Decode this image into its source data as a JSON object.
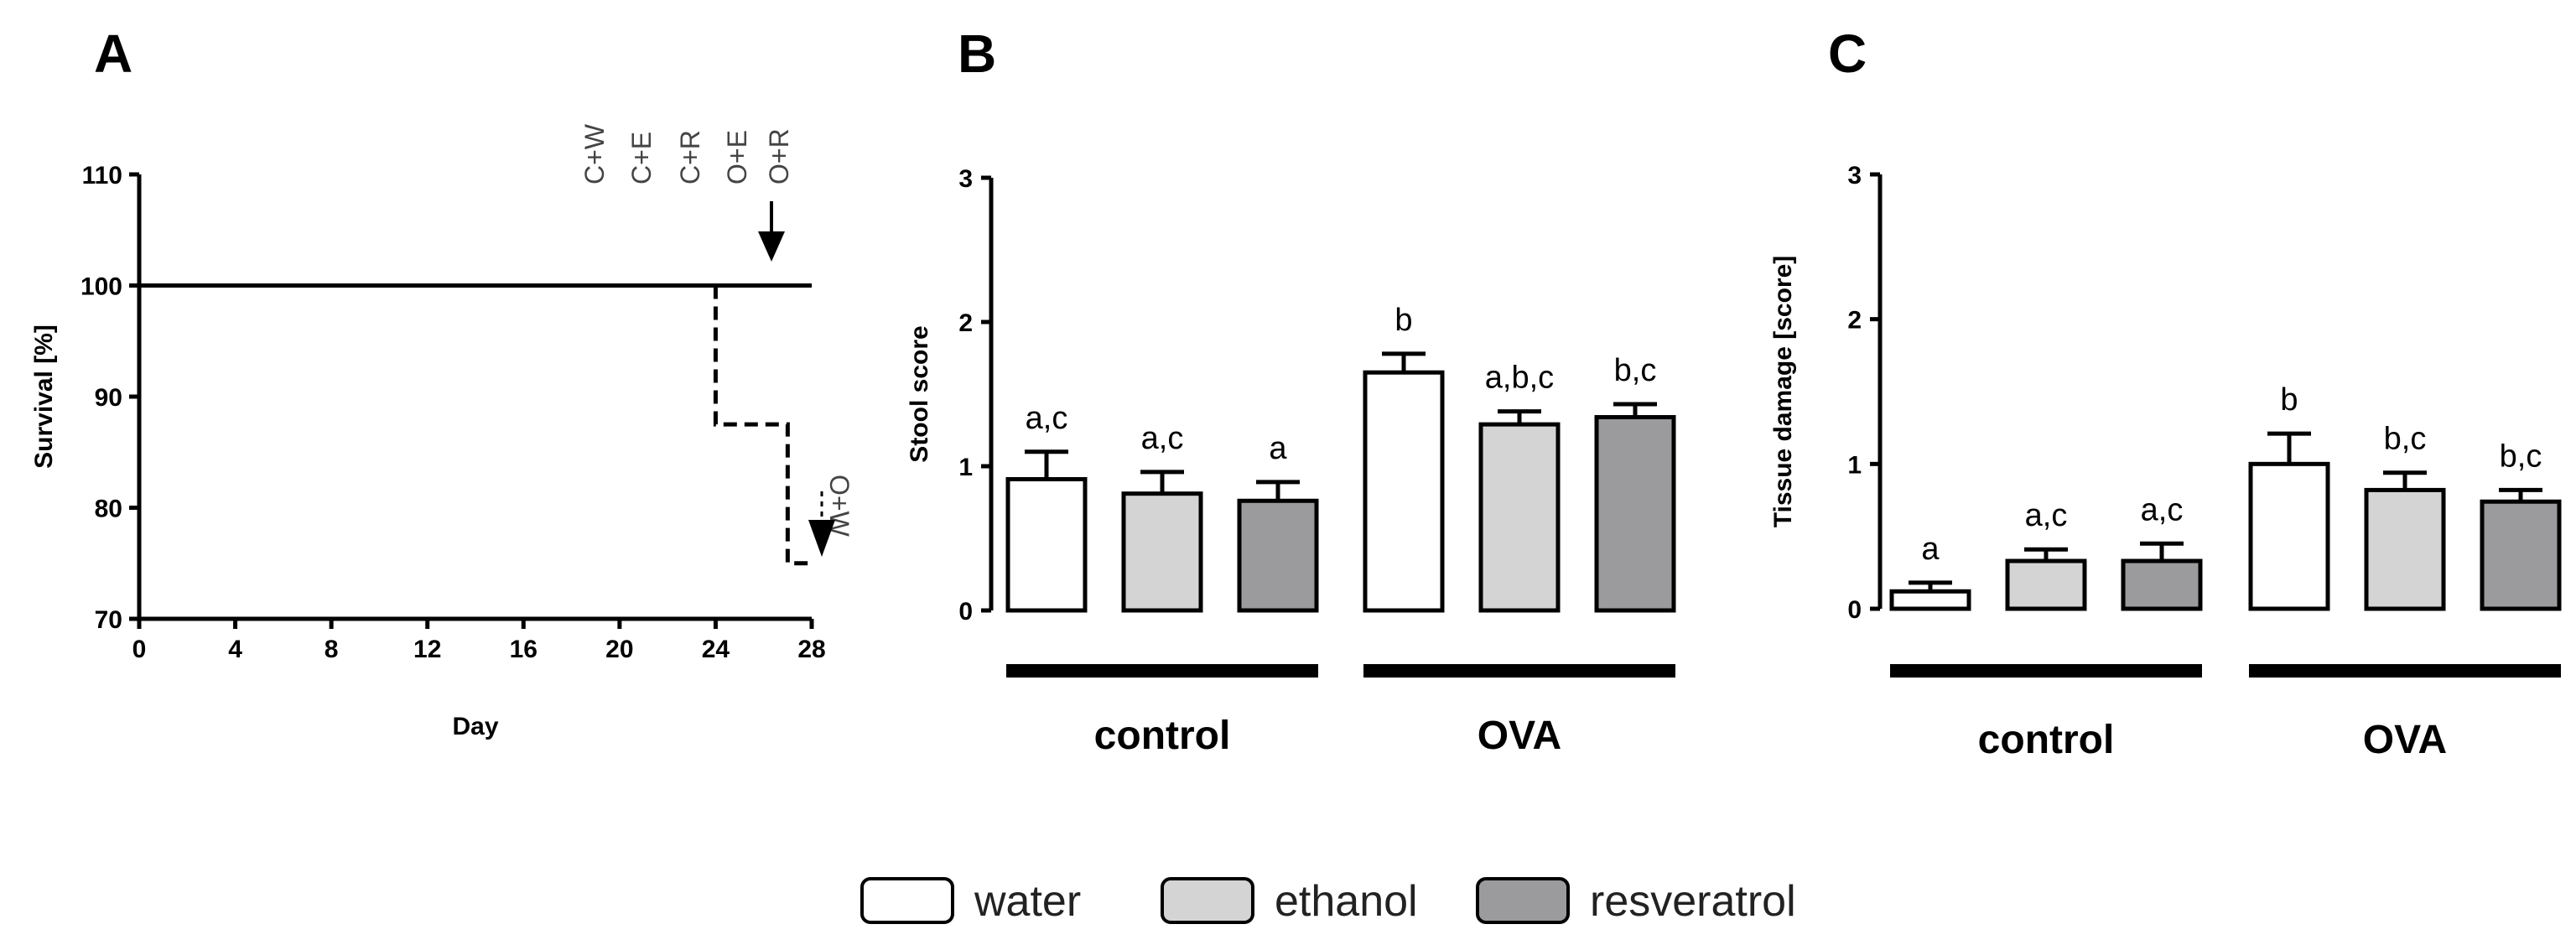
{
  "panels": {
    "A": {
      "letter": "A"
    },
    "B": {
      "letter": "B"
    },
    "C": {
      "letter": "C"
    }
  },
  "colors": {
    "water": "#ffffff",
    "ethanol": "#d4d4d4",
    "resveratrol": "#9b9b9d",
    "stroke": "#000000"
  },
  "legend": [
    {
      "name": "water",
      "color_key": "water"
    },
    {
      "name": "ethanol",
      "color_key": "ethanol"
    },
    {
      "name": "resveratrol",
      "color_key": "resveratrol"
    }
  ],
  "chart_data": [
    {
      "panel": "A",
      "type": "line",
      "xlabel": "Day",
      "ylabel": "Survival [%]",
      "xlim": [
        0,
        28
      ],
      "ylim": [
        70,
        110
      ],
      "xticks": [
        "0",
        "4",
        "8",
        "12",
        "16",
        "20",
        "24",
        "28"
      ],
      "yticks": [
        "70",
        "80",
        "90",
        "100",
        "110"
      ],
      "series": [
        {
          "name": "C+W",
          "style": "solid",
          "x": [
            0,
            28
          ],
          "y": [
            100,
            100
          ]
        },
        {
          "name": "C+E",
          "style": "solid",
          "x": [
            0,
            28
          ],
          "y": [
            100,
            100
          ]
        },
        {
          "name": "C+R",
          "style": "solid",
          "x": [
            0,
            28
          ],
          "y": [
            100,
            100
          ]
        },
        {
          "name": "O+E",
          "style": "solid",
          "x": [
            0,
            28
          ],
          "y": [
            100,
            100
          ]
        },
        {
          "name": "O+R",
          "style": "solid",
          "x": [
            0,
            28
          ],
          "y": [
            100,
            100
          ]
        },
        {
          "name": "O+W",
          "style": "dashed",
          "x": [
            24,
            24,
            27,
            27,
            28
          ],
          "y": [
            100,
            87.5,
            87.5,
            75,
            75
          ]
        }
      ],
      "annotations": {
        "top_group": [
          "C+W",
          "C+E",
          "C+R",
          "O+E",
          "O+R"
        ],
        "side_label": "O+W"
      }
    },
    {
      "panel": "B",
      "type": "bar",
      "ylabel": "Stool score",
      "ylim": [
        0,
        3
      ],
      "yticks": [
        "0",
        "1",
        "2",
        "3"
      ],
      "groups": [
        "control",
        "OVA"
      ],
      "series_names": [
        "water",
        "ethanol",
        "resveratrol"
      ],
      "bars": [
        {
          "group": "control",
          "series": "water",
          "value": 0.91,
          "error": 0.19,
          "label": "a,c"
        },
        {
          "group": "control",
          "series": "ethanol",
          "value": 0.81,
          "error": 0.15,
          "label": "a,c"
        },
        {
          "group": "control",
          "series": "resveratrol",
          "value": 0.76,
          "error": 0.13,
          "label": "a"
        },
        {
          "group": "OVA",
          "series": "water",
          "value": 1.65,
          "error": 0.13,
          "label": "b"
        },
        {
          "group": "OVA",
          "series": "ethanol",
          "value": 1.29,
          "error": 0.09,
          "label": "a,b,c"
        },
        {
          "group": "OVA",
          "series": "resveratrol",
          "value": 1.34,
          "error": 0.09,
          "label": "b,c"
        }
      ]
    },
    {
      "panel": "C",
      "type": "bar",
      "ylabel": "Tissue damage [score]",
      "ylim": [
        0,
        3
      ],
      "yticks": [
        "0",
        "1",
        "2",
        "3"
      ],
      "groups": [
        "control",
        "OVA"
      ],
      "series_names": [
        "water",
        "ethanol",
        "resveratrol"
      ],
      "bars": [
        {
          "group": "control",
          "series": "water",
          "value": 0.12,
          "error": 0.06,
          "label": "a"
        },
        {
          "group": "control",
          "series": "ethanol",
          "value": 0.33,
          "error": 0.08,
          "label": "a,c"
        },
        {
          "group": "control",
          "series": "resveratrol",
          "value": 0.33,
          "error": 0.12,
          "label": "a,c"
        },
        {
          "group": "OVA",
          "series": "water",
          "value": 1.0,
          "error": 0.21,
          "label": "b"
        },
        {
          "group": "OVA",
          "series": "ethanol",
          "value": 0.82,
          "error": 0.12,
          "label": "b,c"
        },
        {
          "group": "OVA",
          "series": "resveratrol",
          "value": 0.74,
          "error": 0.08,
          "label": "b,c"
        }
      ]
    }
  ]
}
